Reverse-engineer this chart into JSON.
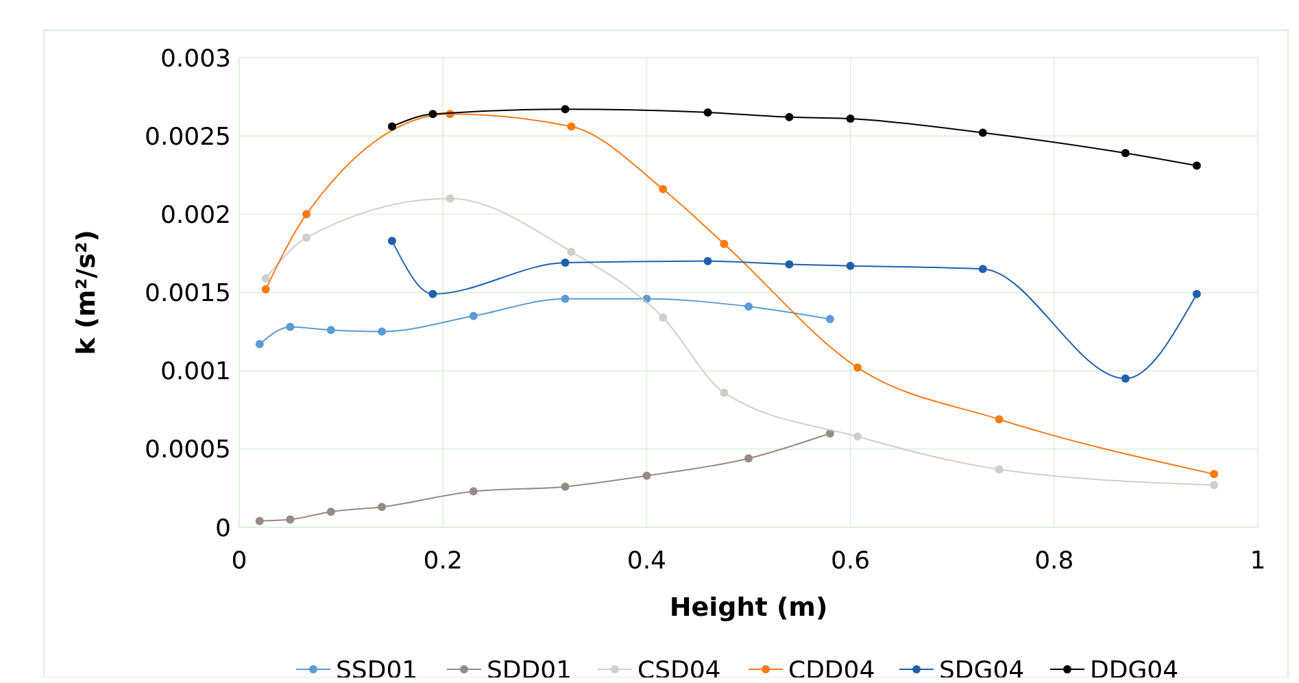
{
  "chart_data": {
    "type": "line",
    "xlabel": "Height (m)",
    "ylabel": "k (m²/s²)",
    "xlim": [
      0,
      1
    ],
    "xticks": [
      0,
      0.2,
      0.4,
      0.6,
      0.8,
      1
    ],
    "ylim": [
      0,
      0.003
    ],
    "yticks": [
      0,
      0.0005,
      0.001,
      0.0015,
      0.002,
      0.0025,
      0.003
    ],
    "grid": true,
    "legend": "bottom",
    "marker": "circle",
    "line_style": "solid",
    "series": [
      {
        "name": "SSD01",
        "color": "#5b9bd5",
        "x": [
          0.02,
          0.05,
          0.09,
          0.14,
          0.23,
          0.32,
          0.4,
          0.5,
          0.58
        ],
        "values": [
          0.00117,
          0.00128,
          0.00126,
          0.00125,
          0.00135,
          0.00146,
          0.00146,
          0.00141,
          0.00133
        ]
      },
      {
        "name": "SDD01",
        "color": "#968a84",
        "x": [
          0.02,
          0.05,
          0.09,
          0.14,
          0.23,
          0.32,
          0.4,
          0.5,
          0.58
        ],
        "values": [
          4e-05,
          5e-05,
          0.0001,
          0.00013,
          0.00023,
          0.00026,
          0.00033,
          0.00044,
          0.0006
        ]
      },
      {
        "name": "CSD04",
        "color": "#d0cec8",
        "x": [
          0.026,
          0.066,
          0.207,
          0.326,
          0.416,
          0.476,
          0.607,
          0.746,
          0.957
        ],
        "values": [
          0.00159,
          0.00185,
          0.0021,
          0.00176,
          0.00134,
          0.00086,
          0.00058,
          0.00037,
          0.00027
        ]
      },
      {
        "name": "CDD04",
        "color": "#f97b14",
        "x": [
          0.026,
          0.066,
          0.207,
          0.326,
          0.416,
          0.476,
          0.607,
          0.746,
          0.957
        ],
        "values": [
          0.00152,
          0.002,
          0.00264,
          0.00256,
          0.00216,
          0.00181,
          0.00102,
          0.00069,
          0.00034
        ]
      },
      {
        "name": "SDG04",
        "color": "#1f5fad",
        "x": [
          0.15,
          0.19,
          0.32,
          0.46,
          0.54,
          0.6,
          0.73,
          0.87,
          0.94
        ],
        "values": [
          0.00183,
          0.00149,
          0.00169,
          0.0017,
          0.00168,
          0.00167,
          0.00165,
          0.00095,
          0.00149
        ]
      },
      {
        "name": "DDG04",
        "color": "#000000",
        "x": [
          0.15,
          0.19,
          0.32,
          0.46,
          0.54,
          0.6,
          0.73,
          0.87,
          0.94
        ],
        "values": [
          0.00256,
          0.00264,
          0.00267,
          0.00265,
          0.00262,
          0.00261,
          0.00252,
          0.00239,
          0.00231
        ]
      }
    ]
  }
}
